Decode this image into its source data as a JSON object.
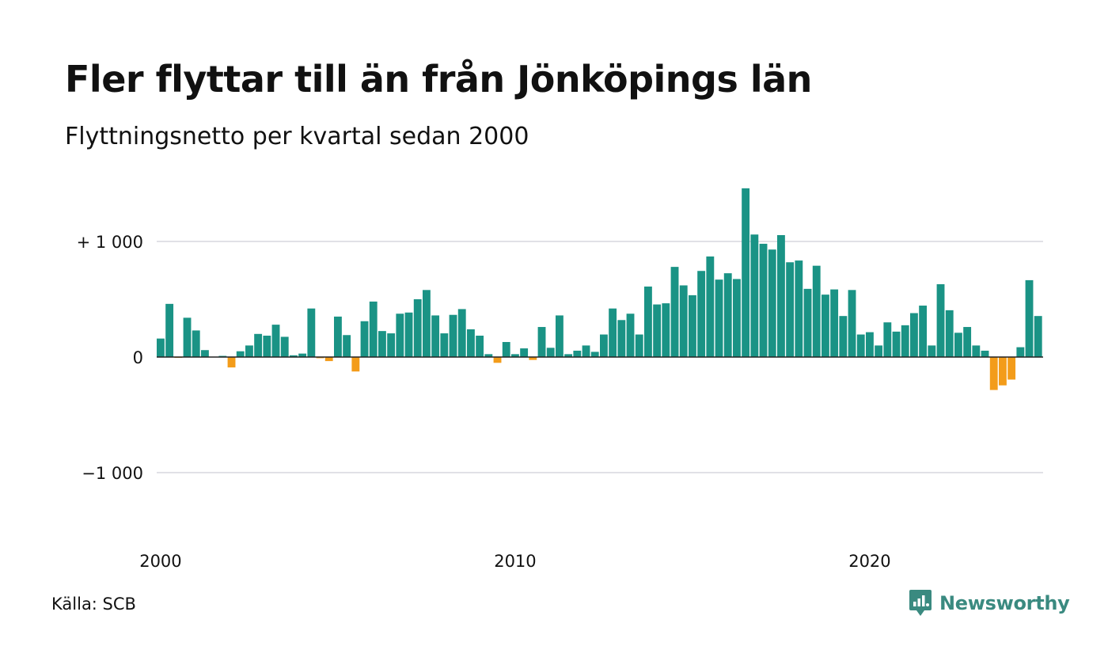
{
  "title": "Fler flyttar till än från Jönköpings län",
  "subtitle": "Flyttningsnetto per kvartal sedan 2000",
  "source": "Källa: SCB",
  "brand": {
    "name": "Newsworthy",
    "icon": "newsworthy-logo-icon"
  },
  "colors": {
    "positive": "#1a9385",
    "negative": "#f39c1a",
    "grid": "#e1e1e6",
    "zero_line": "#222222",
    "brand": "#3a8a80"
  },
  "chart_data": {
    "type": "bar",
    "title": "Fler flyttar till än från Jönköpings län",
    "subtitle": "Flyttningsnetto per kvartal sedan 2000",
    "xlabel": "",
    "ylabel": "",
    "ylim": [
      -1600,
      1600
    ],
    "grid": true,
    "yticks": [
      {
        "value": 1000,
        "label": "+ 1 000"
      },
      {
        "value": 0,
        "label": "0"
      },
      {
        "value": -1000,
        "label": "−1 000"
      }
    ],
    "xticks": [
      {
        "year": 2000,
        "label": "2000"
      },
      {
        "year": 2010,
        "label": "2010"
      },
      {
        "year": 2020,
        "label": "2020"
      }
    ],
    "start_year": 2000,
    "start_quarter": 1,
    "values": [
      160,
      460,
      -5,
      340,
      230,
      60,
      0,
      10,
      -90,
      50,
      100,
      200,
      185,
      280,
      175,
      15,
      30,
      420,
      -10,
      -35,
      350,
      190,
      -125,
      310,
      480,
      225,
      205,
      375,
      385,
      500,
      580,
      360,
      205,
      365,
      415,
      240,
      185,
      25,
      -50,
      130,
      25,
      75,
      -25,
      260,
      80,
      360,
      25,
      55,
      100,
      45,
      195,
      420,
      320,
      375,
      195,
      610,
      455,
      465,
      780,
      620,
      535,
      745,
      870,
      670,
      725,
      675,
      1460,
      1060,
      980,
      930,
      1055,
      820,
      835,
      590,
      790,
      540,
      585,
      355,
      580,
      195,
      215,
      100,
      300,
      220,
      275,
      380,
      445,
      100,
      630,
      405,
      210,
      260,
      100,
      55,
      -285,
      -245,
      -195,
      85,
      665,
      355
    ]
  }
}
